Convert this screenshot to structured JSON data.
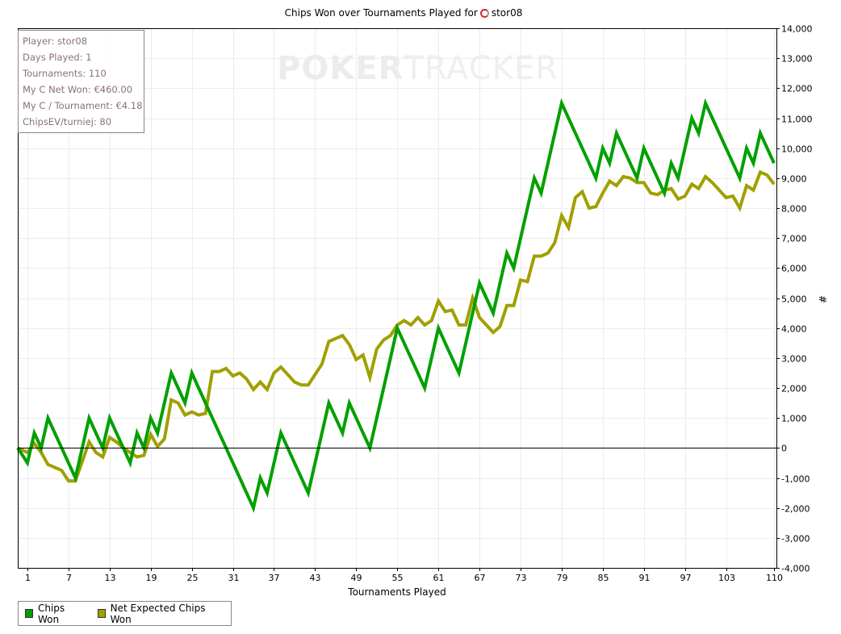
{
  "title": "Chips Won over Tournaments Played for",
  "player_name": "stor08",
  "watermark": {
    "poker": "POKER",
    "tracker": "TRACKER"
  },
  "info_box": [
    "Player: stor08",
    "Days Played: 1",
    "Tournaments: 110",
    "My C Net Won: €460.00",
    "My C / Tournament: €4.18",
    "ChipsEV/turniej: 80"
  ],
  "chart_data": {
    "type": "line",
    "title": "Chips Won over Tournaments Played for stor08",
    "xlabel": "Tournaments Played",
    "ylabel": "#",
    "xlim": [
      0,
      110
    ],
    "ylim": [
      -4000,
      14000
    ],
    "grid": true,
    "legend_position": "bottom-left",
    "x_ticks": [
      "1",
      "7",
      "13",
      "19",
      "25",
      "31",
      "37",
      "43",
      "49",
      "55",
      "61",
      "67",
      "73",
      "79",
      "85",
      "91",
      "97",
      "103",
      "110"
    ],
    "y_ticks": [
      "-4,000",
      "-3,000",
      "-2,000",
      "-1,000",
      "0",
      "1,000",
      "2,000",
      "3,000",
      "4,000",
      "5,000",
      "6,000",
      "7,000",
      "8,000",
      "9,000",
      "10,000",
      "11,000",
      "12,000",
      "13,000",
      "14,000"
    ],
    "series": [
      {
        "name": "Chips Won",
        "color": "#00a000",
        "values": [
          0,
          -500,
          500,
          0,
          1000,
          500,
          0,
          -500,
          -1000,
          0,
          1000,
          500,
          0,
          1000,
          500,
          0,
          -500,
          500,
          0,
          1000,
          500,
          1500,
          2500,
          2000,
          1500,
          2500,
          2000,
          1500,
          1000,
          500,
          0,
          -500,
          -1000,
          -1500,
          -2000,
          -1000,
          -1500,
          -500,
          500,
          0,
          -500,
          -1000,
          -1500,
          -500,
          500,
          1500,
          1000,
          500,
          1500,
          1000,
          500,
          0,
          1000,
          2000,
          3000,
          4000,
          3500,
          3000,
          2500,
          2000,
          3000,
          4000,
          3500,
          3000,
          2500,
          3500,
          4500,
          5500,
          5000,
          4500,
          5500,
          6500,
          6000,
          7000,
          8000,
          9000,
          8500,
          9500,
          10500,
          11500,
          11000,
          10500,
          10000,
          9500,
          9000,
          10000,
          9500,
          10500,
          10000,
          9500,
          9000,
          10000,
          9500,
          9000,
          8500,
          9500,
          9000,
          10000,
          11000,
          10500,
          11500,
          11000,
          10500,
          10000,
          9500,
          9000,
          10000,
          9500,
          10500,
          10000,
          9500
        ]
      },
      {
        "name": "Net Expected Chips Won",
        "color": "#a0a000",
        "values": [
          0,
          -150,
          150,
          -150,
          -550,
          -650,
          -750,
          -1100,
          -1100,
          -450,
          200,
          -150,
          -300,
          350,
          200,
          0,
          -150,
          -300,
          -250,
          450,
          50,
          300,
          1600,
          1500,
          1100,
          1200,
          1100,
          1150,
          2550,
          2550,
          2650,
          2400,
          2500,
          2300,
          1950,
          2200,
          1950,
          2500,
          2700,
          2450,
          2200,
          2100,
          2100,
          2450,
          2800,
          3550,
          3650,
          3750,
          3450,
          2950,
          3100,
          2350,
          3300,
          3600,
          3750,
          4100,
          4250,
          4100,
          4350,
          4100,
          4250,
          4900,
          4550,
          4600,
          4100,
          4100,
          5000,
          4350,
          4100,
          3850,
          4050,
          4750,
          4750,
          5600,
          5550,
          6400,
          6400,
          6500,
          6850,
          7750,
          7350,
          8350,
          8550,
          8000,
          8050,
          8500,
          8900,
          8750,
          9050,
          9000,
          8850,
          8850,
          8500,
          8450,
          8600,
          8650,
          8300,
          8400,
          8800,
          8650,
          9050,
          8850,
          8600,
          8350,
          8400,
          8000,
          8750,
          8600,
          9200,
          9100,
          8800
        ]
      }
    ]
  }
}
